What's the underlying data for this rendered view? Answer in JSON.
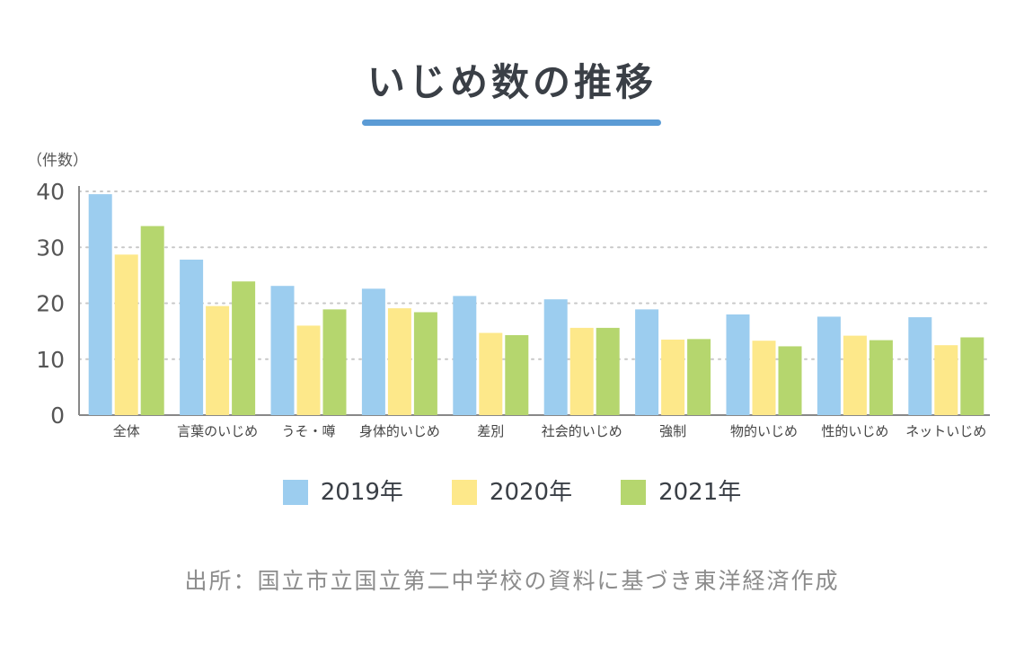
{
  "colors": {
    "series": [
      "#9ccdef",
      "#fde88a",
      "#b5d66e"
    ],
    "grid": "#c8c8c8",
    "axis": "#888888",
    "title_underline": "#5b9bd5"
  },
  "chart_data": {
    "type": "bar",
    "title": "いじめ数の推移",
    "ylabel": "（件数）",
    "xlabel": "",
    "ylim": [
      0,
      40
    ],
    "yticks": [
      0,
      10,
      20,
      30,
      40
    ],
    "grid": true,
    "legend": "bottom",
    "categories": [
      "全体",
      "言葉のいじめ",
      "うそ・噂",
      "身体的いじめ",
      "差別",
      "社会的いじめ",
      "強制",
      "物的いじめ",
      "性的いじめ",
      "ネットいじめ"
    ],
    "series": [
      {
        "name": "2019年",
        "values": [
          39.5,
          27.8,
          23.1,
          22.6,
          21.3,
          20.7,
          18.9,
          18.0,
          17.6,
          17.5
        ]
      },
      {
        "name": "2020年",
        "values": [
          28.7,
          19.5,
          16.0,
          19.1,
          14.7,
          15.6,
          13.5,
          13.3,
          14.2,
          12.5
        ]
      },
      {
        "name": "2021年",
        "values": [
          33.8,
          23.9,
          18.9,
          18.4,
          14.3,
          15.6,
          13.6,
          12.3,
          13.4,
          13.9
        ]
      }
    ],
    "source": "出所：国立市立国立第二中学校の資料に基づき東洋経済作成"
  }
}
